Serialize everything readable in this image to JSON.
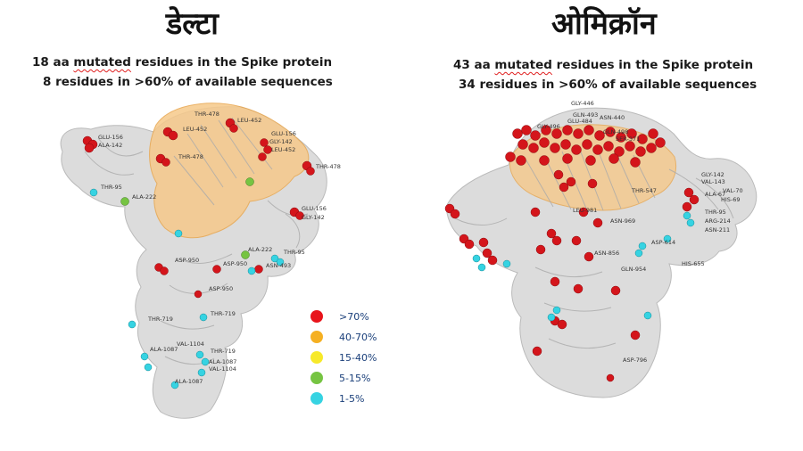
{
  "left": {
    "title": "डेल्टा",
    "subtitle_line1_prefix": "18 aa",
    "subtitle_line1_underlined": "mutated",
    "subtitle_line1_suffix": "residues in the Spike protein",
    "subtitle_line2": "8 residues in >60% of available sequences",
    "residue_labels": [
      "GLU-156",
      "ALA-142",
      "THR-478",
      "LEU-452",
      "LEU-452",
      "GLU-156",
      "GLY-142",
      "LEU-452",
      "THR-478",
      "THR-478",
      "THR-95",
      "ALA-222",
      "GLU-156",
      "GLY-142",
      "ALA-222",
      "THR-95",
      "ASP-950",
      "ASP-950",
      "ASN-493",
      "ASP-950",
      "THR-719",
      "THR-719",
      "VAL-1104",
      "THR-719",
      "ALA-1087",
      "ALA-1087",
      "VAL-1104",
      "ALA-1087"
    ]
  },
  "right": {
    "title": "ओमिक्रॉन",
    "subtitle_line1_prefix": "43 aa",
    "subtitle_line1_underlined": "mutated",
    "subtitle_line1_suffix": "residues in the Spike protein",
    "subtitle_line2": "34 residues in >60% of available sequences",
    "residue_labels": [
      "GLY-446",
      "GLN-493",
      "ASN-440",
      "GLU-484",
      "GLY-496",
      "GLN-498",
      "SER-371",
      "THR-547",
      "GLY-142",
      "VAL-143",
      "VAL-70",
      "ALA-67",
      "HIS-69",
      "THR-95",
      "ARG-214",
      "ASN-211",
      "LEU-981",
      "ASN-969",
      "ASN-856",
      "ASP-614",
      "GLN-954",
      "HIS-655",
      "ASP-796"
    ]
  },
  "legend": [
    {
      "label": ">70%",
      "color": "#e8141b"
    },
    {
      "label": "40-70%",
      "color": "#f5b022"
    },
    {
      "label": "15-40%",
      "color": "#f7e92a"
    },
    {
      "label": "5-15%",
      "color": "#76c442"
    },
    {
      "label": "1-5%",
      "color": "#36d3e2"
    }
  ]
}
